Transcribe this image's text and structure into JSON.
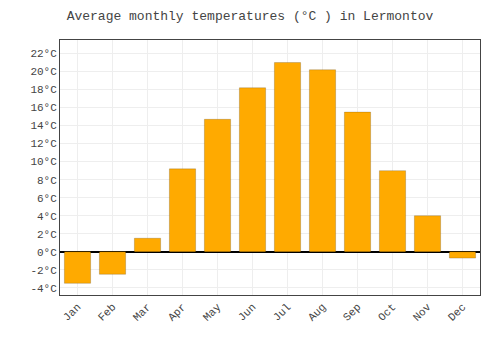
{
  "chart_data": {
    "type": "bar",
    "title": "Average monthly temperatures (°C ) in Lermontov",
    "categories": [
      "Jan",
      "Feb",
      "Mar",
      "Apr",
      "May",
      "Jun",
      "Jul",
      "Aug",
      "Sep",
      "Oct",
      "Nov",
      "Dec"
    ],
    "values": [
      -3.5,
      -2.5,
      1.5,
      9.2,
      14.7,
      18.2,
      21.0,
      20.2,
      15.5,
      9.0,
      4.0,
      -0.7
    ],
    "color": "#FFAA00",
    "ylim": [
      -4.8,
      23.5
    ],
    "yticks": [
      {
        "value": -4,
        "label": "-4°C"
      },
      {
        "value": -2,
        "label": "-2°C"
      },
      {
        "value": 0,
        "label": "0°C"
      },
      {
        "value": 2,
        "label": "2°C"
      },
      {
        "value": 4,
        "label": "4°C"
      },
      {
        "value": 6,
        "label": "6°C"
      },
      {
        "value": 8,
        "label": "8°C"
      },
      {
        "value": 10,
        "label": "10°C"
      },
      {
        "value": 12,
        "label": "12°C"
      },
      {
        "value": 14,
        "label": "14°C"
      },
      {
        "value": 16,
        "label": "16°C"
      },
      {
        "value": 18,
        "label": "18°C"
      },
      {
        "value": 20,
        "label": "20°C"
      },
      {
        "value": 22,
        "label": "22°C"
      }
    ],
    "grid": true
  }
}
